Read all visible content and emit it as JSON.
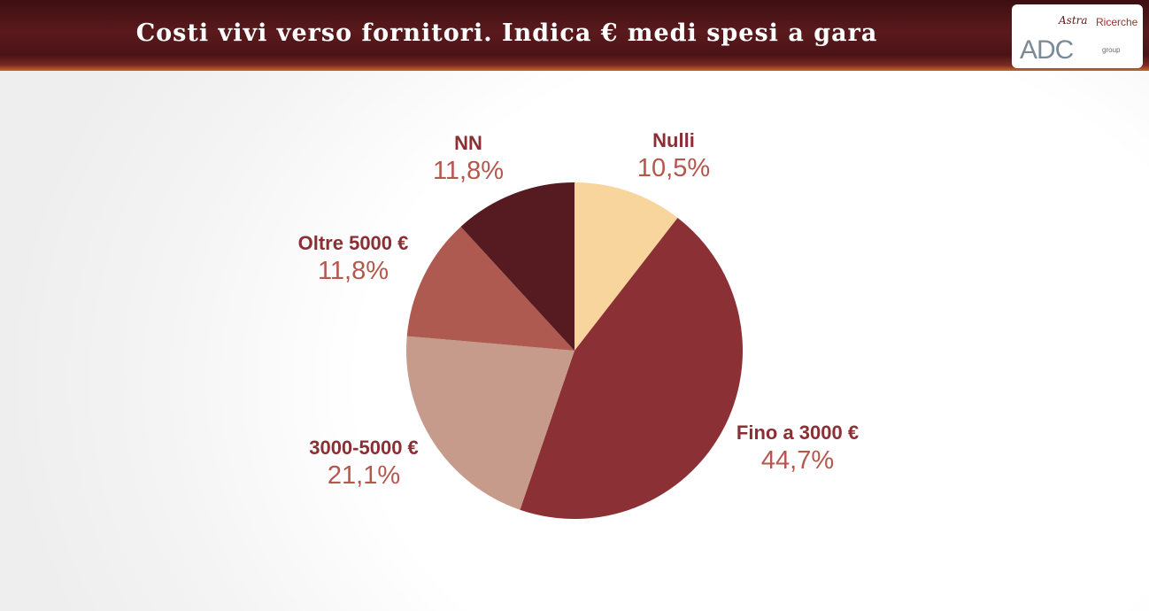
{
  "header": {
    "title": "Costi vivi verso fornitori. Indica € medi spesi a gara"
  },
  "logo": {
    "brand_top": "Astra",
    "brand_top_suffix": "Ricerche",
    "brand_main": "ADC",
    "brand_sub": "group"
  },
  "chart_data": {
    "type": "pie",
    "categories": [
      "Nulli",
      "Fino a 3000 €",
      "3000-5000 €",
      "Oltre 5000 €",
      "NN"
    ],
    "values": [
      10.5,
      44.7,
      21.1,
      11.8,
      11.8
    ],
    "value_labels": [
      "10,5%",
      "44,7%",
      "21,1%",
      "11,8%",
      "11,8%"
    ],
    "colors": [
      "#f8d59d",
      "#8b3136",
      "#c69b8b",
      "#ae5a50",
      "#561a21"
    ],
    "legend": "none"
  }
}
